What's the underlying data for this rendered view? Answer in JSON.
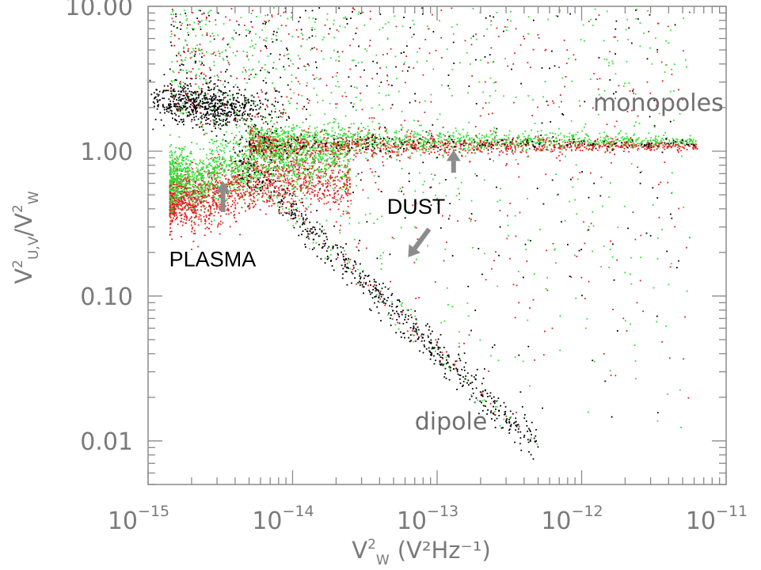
{
  "chart_data": {
    "type": "scatter",
    "title": "",
    "xlabel": {
      "base": "V",
      "sup": "2",
      "sub": "W",
      "units": "(V²Hz⁻¹)"
    },
    "ylabel": {
      "num_base": "V",
      "num_sup": "2",
      "num_sub": "U,V",
      "den_base": "V",
      "den_sup": "2",
      "den_sub": "W"
    },
    "x_scale": "log",
    "y_scale": "log",
    "xlim": [
      1e-15,
      1e-11
    ],
    "ylim": [
      0.005,
      10
    ],
    "x_ticks": [
      {
        "value": 1e-15,
        "label_base": "10",
        "label_exp": "−15"
      },
      {
        "value": 1e-14,
        "label_base": "10",
        "label_exp": "−14"
      },
      {
        "value": 1e-13,
        "label_base": "10",
        "label_exp": "−13"
      },
      {
        "value": 1e-12,
        "label_base": "10",
        "label_exp": "−12"
      },
      {
        "value": 1e-11,
        "label_base": "10",
        "label_exp": "−11"
      }
    ],
    "y_ticks": [
      {
        "value": 10,
        "label": "10.00"
      },
      {
        "value": 1,
        "label": "1.00"
      },
      {
        "value": 0.1,
        "label": "0.10"
      },
      {
        "value": 0.01,
        "label": "0.01"
      }
    ],
    "series": [
      {
        "color": "#000000"
      },
      {
        "color": "#e02020"
      },
      {
        "color": "#33dd33"
      }
    ],
    "annotations": [
      {
        "text": "monopoles",
        "x": 1.2e-12,
        "y": 1.9,
        "style": "gray"
      },
      {
        "text": "dipole",
        "x": 7e-14,
        "y": 0.012,
        "style": "gray"
      },
      {
        "text": "DUST",
        "x": 4.5e-14,
        "y": 0.37,
        "style": "black"
      },
      {
        "text": "PLASMA",
        "x": 1.4e-15,
        "y": 0.16,
        "style": "black"
      }
    ],
    "arrows": [
      {
        "from": [
          3.3e-15,
          0.38
        ],
        "to": [
          3.3e-15,
          0.62
        ]
      },
      {
        "from": [
          1.3e-13,
          0.71
        ],
        "to": [
          1.3e-13,
          1.02
        ]
      },
      {
        "from": [
          8.8e-14,
          0.29
        ],
        "to": [
          6.3e-14,
          0.185
        ]
      }
    ],
    "grid": false,
    "legend": "none"
  }
}
